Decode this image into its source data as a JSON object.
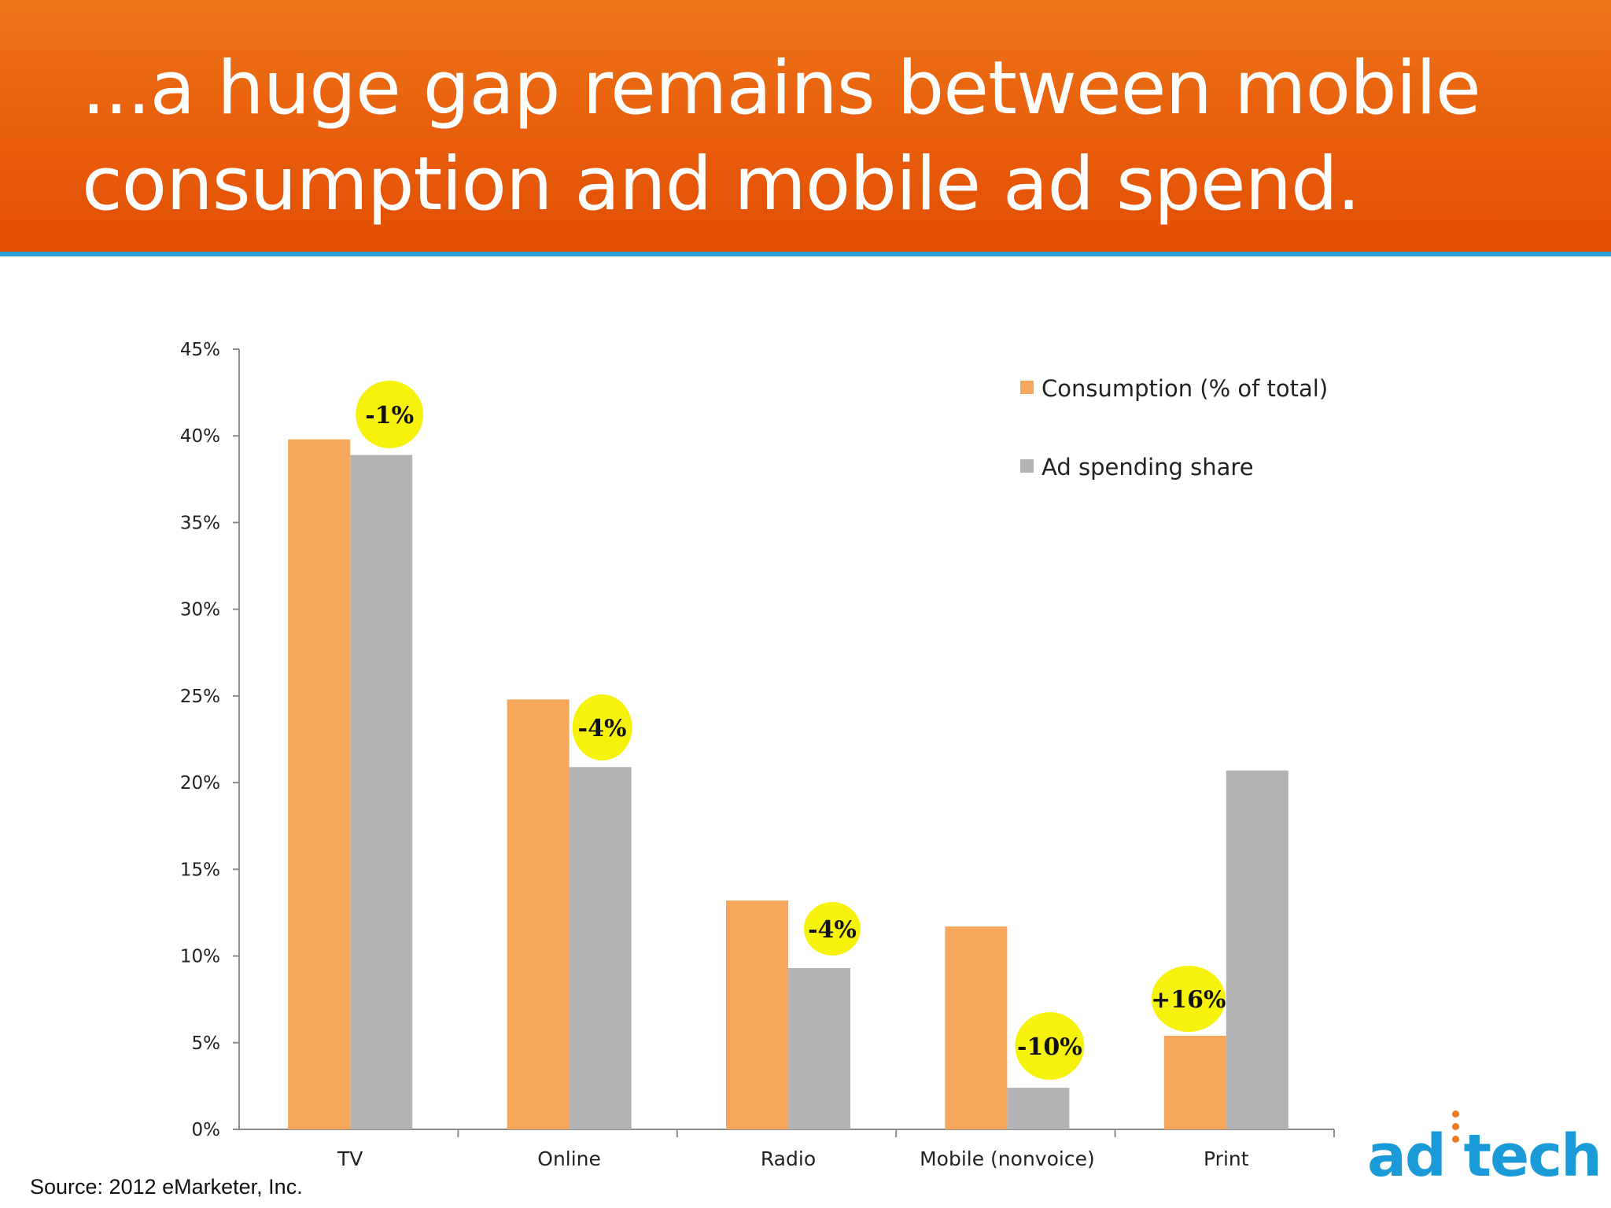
{
  "slide": {
    "title": "...a huge gap remains between mobile consumption and mobile ad spend.",
    "source": "Source: 2012 eMarketer, Inc.",
    "logo_text": "ad:tech",
    "colors": {
      "header": "#e8600c",
      "header_rule": "#2b9fd8",
      "consumption": "#f7a75a",
      "ad_spending": "#b3b2b5",
      "badge": "#f7f20c"
    }
  },
  "chart_data": {
    "type": "bar",
    "categories": [
      "TV",
      "Online",
      "Radio",
      "Mobile (nonvoice)",
      "Print"
    ],
    "series": [
      {
        "name": "Consumption (% of total)",
        "values": [
          39.8,
          24.8,
          13.2,
          11.7,
          5.4
        ]
      },
      {
        "name": "Ad spending share",
        "values": [
          38.9,
          20.9,
          9.3,
          2.4,
          20.7
        ]
      }
    ],
    "annotations": [
      "-1%",
      "-4%",
      "-4%",
      "-10%",
      "+16%"
    ],
    "y_ticks": [
      "0%",
      "5%",
      "10%",
      "15%",
      "20%",
      "25%",
      "30%",
      "35%",
      "40%",
      "45%"
    ],
    "ylim": [
      0,
      45
    ],
    "legend_position": "top-right",
    "grid": false
  }
}
